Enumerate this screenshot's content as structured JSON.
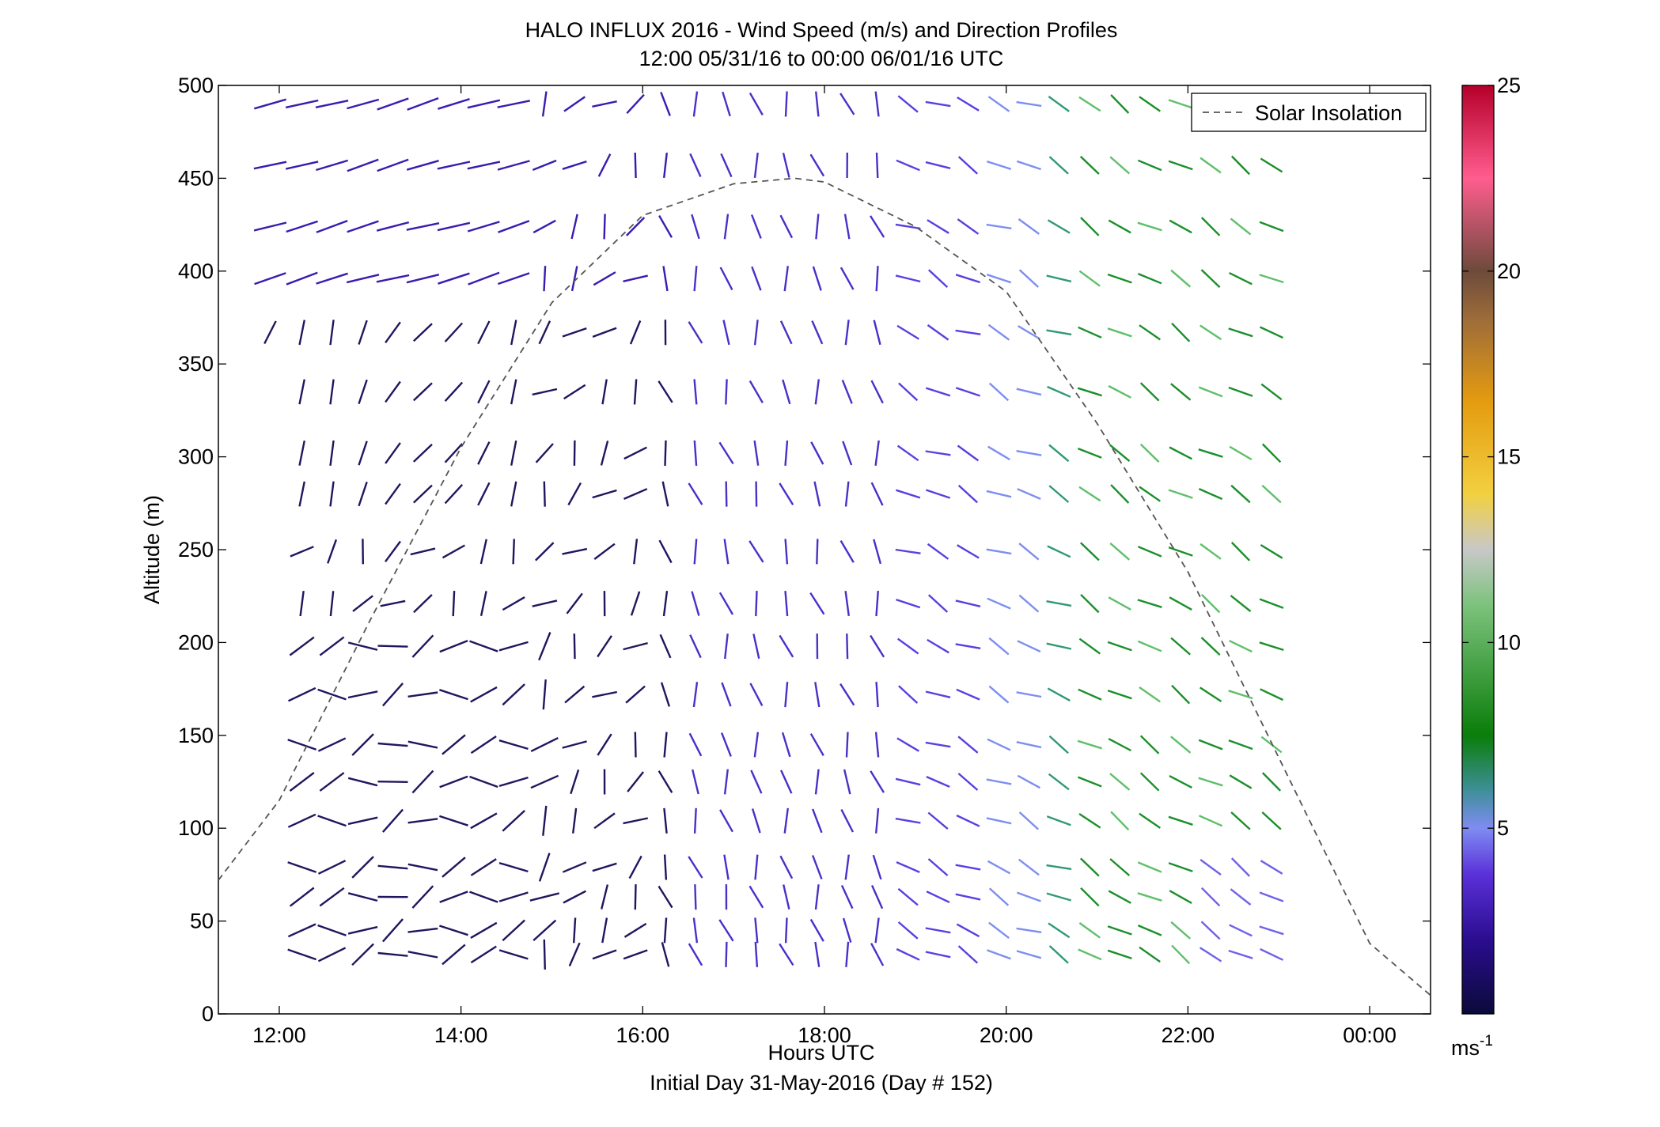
{
  "chart_data": {
    "type": "wind-barb-profile",
    "title": "HALO INFLUX 2016 - Wind Speed (m/s) and Direction Profiles",
    "subtitle": "12:00 05/31/16 to 00:00 06/01/16  UTC",
    "xlabel": "Hours UTC",
    "xlabel2": "Initial Day 31-May-2016 (Day # 152)",
    "ylabel": "Altitude (m)",
    "xlim": [
      11.33,
      24.67
    ],
    "ylim": [
      0,
      500
    ],
    "xticks": [
      {
        "value": 12,
        "label": "12:00"
      },
      {
        "value": 14,
        "label": "14:00"
      },
      {
        "value": 16,
        "label": "16:00"
      },
      {
        "value": 18,
        "label": "18:00"
      },
      {
        "value": 20,
        "label": "20:00"
      },
      {
        "value": 22,
        "label": "22:00"
      },
      {
        "value": 24,
        "label": "00:00"
      }
    ],
    "yticks": [
      0,
      50,
      100,
      150,
      200,
      250,
      300,
      350,
      400,
      450,
      500
    ],
    "legend": {
      "label": "Solar Insolation",
      "position": "top-right"
    },
    "colorbar": {
      "range": [
        0,
        25
      ],
      "ticks": [
        5,
        10,
        15,
        20,
        25
      ],
      "unit_label": "ms",
      "unit_exponent": "-1",
      "colors": [
        "#0b0a3a",
        "#2a0d8f",
        "#5a30d8",
        "#7f8cf2",
        "#3f8f9a",
        "#0a7d0a",
        "#7cc27c",
        "#c8c8c8",
        "#f2d040",
        "#e49b10",
        "#9c6b3a",
        "#6d4a3b",
        "#ff5d8f",
        "#b5002a"
      ]
    },
    "solar_insolation": {
      "x": [
        11.33,
        12,
        13,
        14,
        15,
        16,
        17,
        17.67,
        18,
        19,
        20,
        21,
        22,
        23,
        24,
        24.67
      ],
      "y": [
        72,
        115,
        212,
        305,
        383,
        430,
        447,
        450,
        448,
        424,
        389,
        318,
        238,
        138,
        38,
        10
      ]
    },
    "altitudes": [
      490,
      457,
      424,
      396,
      367,
      335,
      302,
      280,
      249,
      221,
      198,
      172,
      145,
      125,
      104,
      79,
      63,
      45,
      32
    ],
    "times": [
      11.9,
      12.25,
      12.58,
      12.92,
      13.25,
      13.58,
      13.92,
      14.25,
      14.58,
      14.92,
      15.25,
      15.58,
      15.92,
      16.25,
      16.58,
      16.92,
      17.25,
      17.58,
      17.92,
      18.25,
      18.58,
      18.92,
      19.25,
      19.58,
      19.92,
      20.25,
      20.58,
      20.92,
      21.25,
      21.58,
      21.92,
      22.25,
      22.58,
      22.92
    ]
  }
}
